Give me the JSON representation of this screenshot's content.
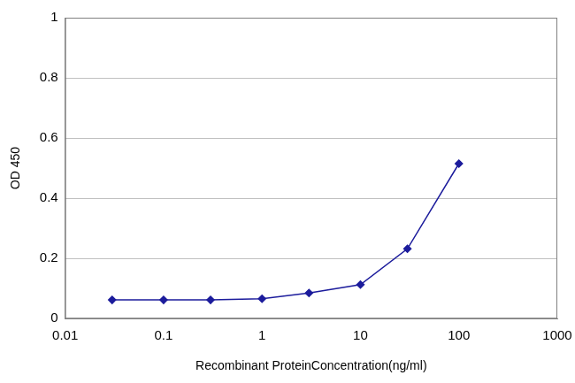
{
  "chart_data": {
    "type": "line",
    "x_label": "Recombinant ProteinConcentration(ng/ml)",
    "y_label": "OD 450",
    "x": [
      0.03,
      0.1,
      0.3,
      1,
      3,
      10,
      30,
      100
    ],
    "values": [
      0.062,
      0.062,
      0.062,
      0.066,
      0.085,
      0.113,
      0.232,
      0.515
    ],
    "color": "#1c1c9c",
    "marker": "diamond",
    "log": "x",
    "xlim": [
      0.01,
      1000
    ],
    "xticks": [
      0.01,
      0.1,
      1,
      10,
      100,
      1000
    ],
    "ylim": [
      0,
      1
    ],
    "yticks": [
      0,
      0.2,
      0.4,
      0.6,
      0.8,
      1
    ],
    "grid": true
  }
}
